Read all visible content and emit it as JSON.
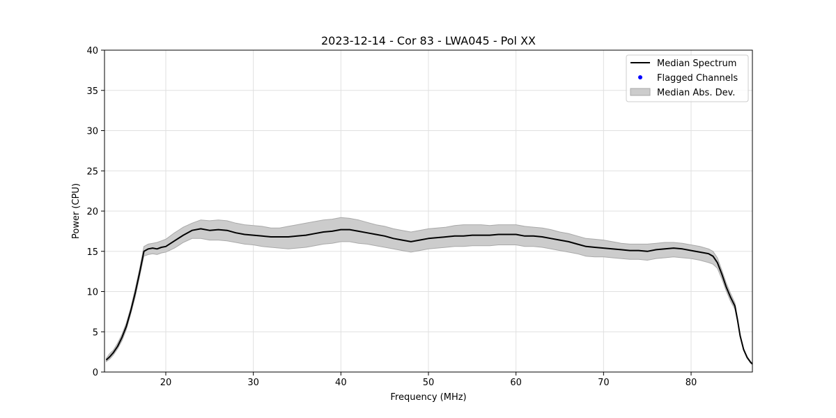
{
  "chart_data": {
    "type": "line",
    "title": "2023-12-14 - Cor 83 - LWA045 - Pol XX",
    "xlabel": "Frequency (MHz)",
    "ylabel": "Power (CPU)",
    "xlim": [
      13,
      87
    ],
    "ylim": [
      0,
      40
    ],
    "xticks": [
      20,
      30,
      40,
      50,
      60,
      70,
      80
    ],
    "yticks": [
      0,
      5,
      10,
      15,
      20,
      25,
      30,
      35,
      40
    ],
    "grid": true,
    "legend_position": "top-right",
    "legend": [
      "Median Spectrum",
      "Flagged Channels",
      "Median Abs. Dev."
    ],
    "colors": {
      "median": "#000000",
      "flagged": "#0000ff",
      "band": "#cccccc",
      "band_edge": "#a9a9a9",
      "grid": "#e0e0e0"
    },
    "series": [
      {
        "name": "Median Spectrum",
        "x": [
          13.2,
          13.6,
          14.0,
          14.5,
          15.0,
          15.5,
          16.0,
          16.5,
          17.0,
          17.5,
          18.0,
          18.5,
          19.0,
          19.5,
          20.0,
          21.0,
          22.0,
          23.0,
          24.0,
          25.0,
          26.0,
          27.0,
          28.0,
          29.0,
          30.0,
          31.0,
          32.0,
          33.0,
          34.0,
          35.0,
          36.0,
          37.0,
          38.0,
          39.0,
          40.0,
          41.0,
          42.0,
          43.0,
          44.0,
          45.0,
          46.0,
          47.0,
          48.0,
          49.0,
          50.0,
          51.0,
          52.0,
          53.0,
          54.0,
          55.0,
          56.0,
          57.0,
          58.0,
          59.0,
          60.0,
          61.0,
          62.0,
          63.0,
          64.0,
          65.0,
          66.0,
          67.0,
          68.0,
          69.0,
          70.0,
          71.0,
          72.0,
          73.0,
          74.0,
          75.0,
          76.0,
          77.0,
          78.0,
          79.0,
          80.0,
          81.0,
          82.0,
          82.5,
          83.0,
          83.5,
          84.0,
          84.5,
          85.0,
          85.3,
          85.6,
          86.0,
          86.4,
          86.8,
          87.0
        ],
        "values": [
          1.5,
          1.9,
          2.4,
          3.2,
          4.3,
          5.7,
          7.6,
          9.8,
          12.3,
          15.0,
          15.3,
          15.4,
          15.3,
          15.5,
          15.6,
          16.3,
          17.0,
          17.6,
          17.8,
          17.6,
          17.7,
          17.6,
          17.3,
          17.1,
          17.0,
          16.9,
          16.8,
          16.8,
          16.8,
          16.9,
          17.0,
          17.2,
          17.4,
          17.5,
          17.7,
          17.7,
          17.5,
          17.3,
          17.1,
          16.9,
          16.6,
          16.4,
          16.2,
          16.4,
          16.6,
          16.7,
          16.8,
          16.9,
          16.9,
          17.0,
          17.0,
          17.0,
          17.1,
          17.1,
          17.1,
          16.9,
          16.9,
          16.8,
          16.6,
          16.4,
          16.2,
          15.9,
          15.6,
          15.5,
          15.4,
          15.3,
          15.2,
          15.1,
          15.1,
          15.0,
          15.2,
          15.3,
          15.4,
          15.3,
          15.1,
          14.9,
          14.7,
          14.4,
          13.6,
          12.2,
          10.6,
          9.3,
          8.2,
          6.5,
          4.5,
          2.8,
          1.8,
          1.2,
          1.0
        ]
      },
      {
        "name": "Median Abs. Dev.",
        "x": [
          13.2,
          13.6,
          14.0,
          14.5,
          15.0,
          15.5,
          16.0,
          16.5,
          17.0,
          17.5,
          18.0,
          18.5,
          19.0,
          19.5,
          20.0,
          21.0,
          22.0,
          23.0,
          24.0,
          25.0,
          26.0,
          27.0,
          28.0,
          29.0,
          30.0,
          31.0,
          32.0,
          33.0,
          34.0,
          35.0,
          36.0,
          37.0,
          38.0,
          39.0,
          40.0,
          41.0,
          42.0,
          43.0,
          44.0,
          45.0,
          46.0,
          47.0,
          48.0,
          49.0,
          50.0,
          51.0,
          52.0,
          53.0,
          54.0,
          55.0,
          56.0,
          57.0,
          58.0,
          59.0,
          60.0,
          61.0,
          62.0,
          63.0,
          64.0,
          65.0,
          66.0,
          67.0,
          68.0,
          69.0,
          70.0,
          71.0,
          72.0,
          73.0,
          74.0,
          75.0,
          76.0,
          77.0,
          78.0,
          79.0,
          80.0,
          81.0,
          82.0,
          82.5,
          83.0,
          83.5,
          84.0,
          84.5,
          85.0,
          85.3,
          85.6,
          86.0,
          86.4,
          86.8,
          87.0
        ],
        "upper": [
          1.7,
          2.3,
          2.7,
          3.6,
          4.7,
          6.1,
          8.0,
          10.3,
          12.8,
          15.6,
          15.9,
          16.0,
          16.1,
          16.3,
          16.5,
          17.3,
          18.0,
          18.5,
          18.9,
          18.8,
          18.9,
          18.8,
          18.5,
          18.3,
          18.2,
          18.1,
          17.9,
          17.9,
          18.1,
          18.3,
          18.5,
          18.7,
          18.9,
          19.0,
          19.2,
          19.1,
          18.9,
          18.6,
          18.3,
          18.1,
          17.8,
          17.6,
          17.4,
          17.6,
          17.8,
          17.9,
          18.0,
          18.2,
          18.3,
          18.3,
          18.3,
          18.2,
          18.3,
          18.3,
          18.3,
          18.1,
          18.0,
          17.9,
          17.7,
          17.4,
          17.2,
          16.9,
          16.6,
          16.5,
          16.4,
          16.2,
          16.0,
          15.9,
          15.9,
          15.9,
          16.0,
          16.1,
          16.1,
          16.0,
          15.8,
          15.6,
          15.3,
          15.0,
          14.2,
          12.7,
          11.1,
          9.8,
          8.6,
          6.7,
          4.6,
          2.9,
          1.9,
          1.3,
          1.0
        ],
        "lower": [
          1.3,
          1.6,
          2.1,
          2.9,
          3.9,
          5.3,
          7.2,
          9.3,
          11.8,
          14.4,
          14.6,
          14.7,
          14.6,
          14.8,
          14.9,
          15.4,
          16.1,
          16.6,
          16.6,
          16.4,
          16.4,
          16.3,
          16.1,
          15.9,
          15.8,
          15.6,
          15.5,
          15.4,
          15.3,
          15.4,
          15.5,
          15.7,
          15.9,
          16.0,
          16.2,
          16.2,
          16.0,
          15.9,
          15.7,
          15.5,
          15.3,
          15.1,
          14.9,
          15.1,
          15.3,
          15.4,
          15.5,
          15.6,
          15.6,
          15.7,
          15.7,
          15.7,
          15.8,
          15.8,
          15.8,
          15.6,
          15.6,
          15.5,
          15.3,
          15.1,
          14.9,
          14.7,
          14.4,
          14.3,
          14.3,
          14.2,
          14.1,
          14.0,
          14.0,
          13.9,
          14.1,
          14.2,
          14.3,
          14.2,
          14.1,
          13.9,
          13.6,
          13.4,
          12.9,
          11.6,
          10.1,
          8.8,
          7.8,
          6.3,
          4.4,
          2.7,
          1.7,
          1.1,
          1.0
        ]
      }
    ],
    "flagged_channels": []
  }
}
